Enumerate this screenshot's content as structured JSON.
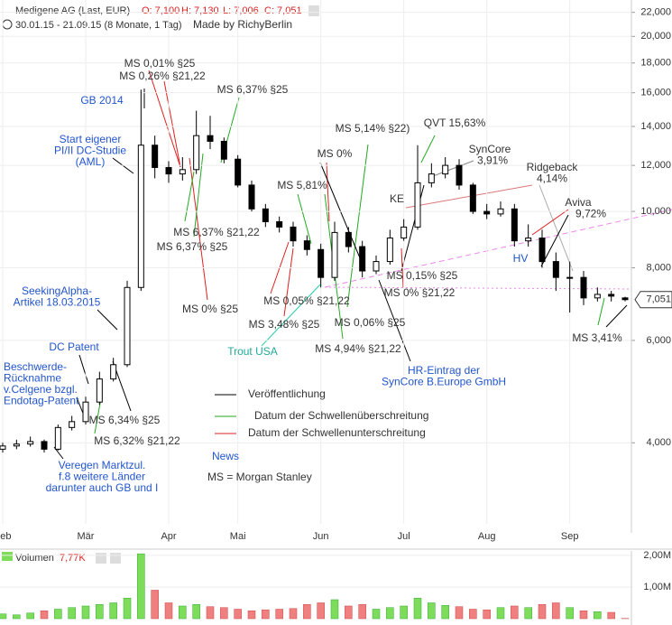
{
  "chart_data": {
    "type": "candlestick",
    "title": "Medigene AG (Last, EUR)",
    "ohlc_labels": [
      "O: 7,100",
      "H: 7,130",
      "L: 7,006",
      "C: 7,051"
    ],
    "subtitle": "30.01.15 - 21.09.15 (8 Monate, 1 Tag)",
    "credit": "Made by RichyBerlin",
    "categories": [
      "Feb",
      null,
      null,
      null,
      null,
      null,
      "Mär",
      null,
      null,
      null,
      null,
      null,
      "Apr",
      null,
      null,
      null,
      null,
      "Mai",
      null,
      null,
      null,
      null,
      null,
      "Jun",
      null,
      null,
      null,
      null,
      null,
      "Jul",
      null,
      null,
      null,
      null,
      null,
      "Aug",
      null,
      null,
      null,
      null,
      null,
      "Sep",
      null,
      null,
      null,
      null
    ],
    "open": [
      3900,
      3950,
      3980,
      4020,
      3900,
      4250,
      4350,
      4700,
      5150,
      5450,
      7400,
      13000,
      11900,
      11600,
      11800,
      13500,
      13200,
      12300,
      11100,
      10100,
      9600,
      9400,
      8900,
      8600,
      7700,
      9200,
      8700,
      7900,
      8200,
      9000,
      9400,
      11200,
      11600,
      12000,
      11100,
      10000,
      9900,
      10100,
      8900,
      9000,
      8200,
      7700,
      7700,
      7100,
      7200,
      7100
    ],
    "high": [
      4000,
      4050,
      4100,
      4050,
      4300,
      4450,
      4800,
      5300,
      5600,
      7600,
      16200,
      13500,
      12200,
      12400,
      14900,
      14600,
      13400,
      12500,
      11300,
      10300,
      9800,
      9600,
      9100,
      8800,
      9600,
      9400,
      8900,
      8400,
      9300,
      9700,
      13000,
      12100,
      12400,
      12300,
      11200,
      10300,
      10400,
      10300,
      9500,
      9300,
      8500,
      8200,
      7900,
      7400,
      7300,
      7130
    ],
    "low": [
      3850,
      3900,
      3940,
      3850,
      3880,
      4200,
      4300,
      4650,
      5100,
      5400,
      7300,
      11400,
      11200,
      11300,
      11600,
      12800,
      12100,
      11000,
      10000,
      9400,
      9200,
      8700,
      8400,
      7400,
      7600,
      8500,
      7700,
      7800,
      8100,
      8900,
      9300,
      11000,
      11400,
      10900,
      9900,
      9700,
      9800,
      8700,
      8700,
      8000,
      7300,
      6700,
      6900,
      7000,
      7000,
      7006
    ],
    "close": [
      3950,
      3980,
      4020,
      3900,
      4250,
      4350,
      4700,
      5150,
      5450,
      7400,
      13000,
      11900,
      11600,
      11800,
      13500,
      13200,
      12300,
      11100,
      10100,
      9600,
      9400,
      8900,
      8600,
      7700,
      9200,
      8700,
      7900,
      8200,
      9000,
      9400,
      11200,
      11600,
      12000,
      11100,
      10000,
      9900,
      10100,
      8900,
      9000,
      8200,
      7700,
      7700,
      7100,
      7200,
      7150,
      7051
    ],
    "up_color": "#ffffff",
    "down_color": "#000000",
    "last_label": "7,051",
    "log_scale": true,
    "grid": true,
    "ylim": [
      2800,
      23100
    ],
    "yticks": [
      {
        "value": 4000,
        "label": "4,000"
      },
      {
        "value": 6000,
        "label": "6,000"
      },
      {
        "value": 8000,
        "label": "8,000"
      },
      {
        "value": 10000,
        "label": "10,000"
      },
      {
        "value": 12000,
        "label": "12,000"
      },
      {
        "value": 14000,
        "label": "14,000"
      },
      {
        "value": 16000,
        "label": "16,000"
      },
      {
        "value": 18000,
        "label": "18,000"
      },
      {
        "value": 20000,
        "label": "20,000"
      },
      {
        "value": 22000,
        "label": "22,000"
      }
    ],
    "annotations": [
      {
        "lines": [
          "MS 0,01% §25"
        ],
        "color": "#333333"
      },
      {
        "lines": [
          "MS 0,26% §21,22"
        ],
        "color": "#333333"
      },
      {
        "lines": [
          "GB 2014"
        ],
        "color": "#2255cc"
      },
      {
        "lines": [
          "MS 6,37% §25"
        ],
        "color": "#333333"
      },
      {
        "lines": [
          "Start eigener",
          "PI/II DC-Studie",
          "(AML)"
        ],
        "color": "#2255cc"
      },
      {
        "lines": [
          "MS 6,37% §21,22"
        ],
        "color": "#333333"
      },
      {
        "lines": [
          "MS 6,37% §25"
        ],
        "color": "#333333"
      },
      {
        "lines": [
          "MS 0% §25"
        ],
        "color": "#333333"
      },
      {
        "lines": [
          "MS 5,81%"
        ],
        "color": "#333333"
      },
      {
        "lines": [
          "MS 0%"
        ],
        "color": "#333333"
      },
      {
        "lines": [
          "MS 5,14% §22)"
        ],
        "color": "#333333"
      },
      {
        "lines": [
          "QVT 15,63%"
        ],
        "color": "#333333"
      },
      {
        "lines": [
          "SynCore",
          "3,91%"
        ],
        "color": "#333333"
      },
      {
        "lines": [
          "Ridgeback",
          "4,14%"
        ],
        "color": "#333333"
      },
      {
        "lines": [
          "KE"
        ],
        "color": "#333333"
      },
      {
        "lines": [
          "Aviva",
          "9,72%"
        ],
        "color": "#333333"
      },
      {
        "lines": [
          "HV"
        ],
        "color": "#2255cc"
      },
      {
        "lines": [
          "MS 0,15% §25"
        ],
        "color": "#333333"
      },
      {
        "lines": [
          "MS 0% §21,22"
        ],
        "color": "#333333"
      },
      {
        "lines": [
          "MS 0,05% §21,22"
        ],
        "color": "#333333"
      },
      {
        "lines": [
          "MS 3,48% §25"
        ],
        "color": "#333333"
      },
      {
        "lines": [
          "MS 0,06% §25"
        ],
        "color": "#333333"
      },
      {
        "lines": [
          "MS 4,94% §21,22"
        ],
        "color": "#333333"
      },
      {
        "lines": [
          "Trout USA"
        ],
        "color": "#22aa99"
      },
      {
        "lines": [
          "HR-Eintrag der",
          "SynCore B.Europe GmbH"
        ],
        "color": "#2255cc"
      },
      {
        "lines": [
          "MS 3,41%"
        ],
        "color": "#333333"
      },
      {
        "lines": [
          "SeekingAlpha-",
          "Artikel 18.03.2015"
        ],
        "color": "#2255cc"
      },
      {
        "lines": [
          "DC Patent"
        ],
        "color": "#2255cc"
      },
      {
        "lines": [
          "Beschwerde-",
          "Rücknahme",
          "v.Celgene bzgl.",
          "Endotag-Patent"
        ],
        "color": "#2255cc"
      },
      {
        "lines": [
          "MS 6,34% §25"
        ],
        "color": "#333333"
      },
      {
        "lines": [
          "MS 6,32% §21,22"
        ],
        "color": "#333333"
      },
      {
        "lines": [
          "Veregen Marktzul.",
          "f.8 weitere Länder",
          "darunter auch GB und I"
        ],
        "color": "#2255cc"
      }
    ],
    "legend": [
      {
        "text": "Veröffentlichung",
        "color": "#000000"
      },
      {
        "text": "Datum der Schwellenüberschreitung",
        "color": "#22aa22"
      },
      {
        "text": "Datum der Schwellenunterschreitung",
        "color": "#dd2222"
      }
    ],
    "news_label": "News",
    "ms_note": "MS = Morgan Stanley",
    "volume": {
      "title": "Volumen",
      "last_label": "7,77K",
      "values": [
        150000,
        120000,
        180000,
        250000,
        300000,
        350000,
        400000,
        450000,
        500000,
        650000,
        2050000,
        900000,
        500000,
        400000,
        450000,
        380000,
        350000,
        300000,
        250000,
        280000,
        300000,
        320000,
        450000,
        500000,
        600000,
        400000,
        450000,
        300000,
        350000,
        400000,
        650000,
        500000,
        420000,
        380000,
        300000,
        280000,
        350000,
        400000,
        350000,
        450000,
        500000,
        350000,
        250000,
        220000,
        200000,
        7770
      ],
      "up_color": "#7ddc5a",
      "down_color": "#f08080",
      "ylim": [
        0,
        2140000
      ],
      "yticks": [
        {
          "value": 1000000,
          "label": "1,00M"
        },
        {
          "value": 2000000,
          "label": "2,00M"
        }
      ]
    }
  }
}
